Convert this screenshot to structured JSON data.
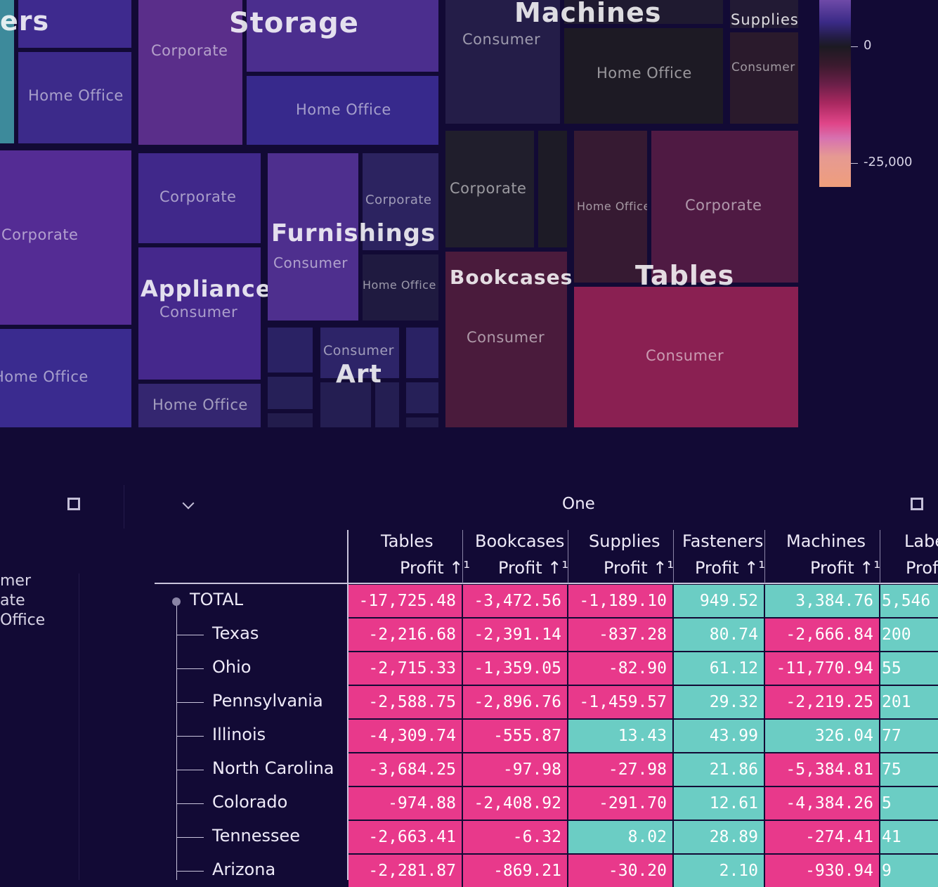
{
  "treemap": {
    "tiles": [
      {
        "name": "cat-binders-edge",
        "color": "#3d8a9b"
      },
      {
        "name": "binders-consumer",
        "color": "#3e2a8e"
      },
      {
        "name": "binders-home-office",
        "color": "#3c2a8a",
        "label": "Home Office"
      },
      {
        "name": "binders-corporate",
        "color": "#542c94",
        "label": "Corporate"
      },
      {
        "name": "binders-home-office-2",
        "color": "#3a2b8f",
        "label": "Home Office"
      },
      {
        "name": "storage-corporate",
        "color": "#5a2e8a",
        "label": "Corporate"
      },
      {
        "name": "storage-consumer",
        "color": "#4b2e8e"
      },
      {
        "name": "storage-home-office",
        "color": "#37298c",
        "label": "Home Office"
      },
      {
        "name": "appliances-corporate",
        "color": "#40288a",
        "label": "Corporate"
      },
      {
        "name": "appliances-consumer",
        "color": "#45288c",
        "label": "Consumer"
      },
      {
        "name": "appliances-home-office",
        "color": "#342670",
        "label": "Home Office"
      },
      {
        "name": "furnishings-consumer",
        "color": "#4e2f8e",
        "label": "Consumer"
      },
      {
        "name": "furnishings-corporate",
        "color": "#2c2360",
        "label": "Corporate"
      },
      {
        "name": "furnishings-home-office",
        "color": "#1f1a40",
        "label": "Home Office"
      },
      {
        "name": "art-consumer",
        "color": "#2d2468",
        "label": "Consumer"
      },
      {
        "name": "machines-consumer",
        "color": "#241d48",
        "label": "Consumer"
      },
      {
        "name": "machines-home-office",
        "color": "#1d1a24",
        "label": "Home Office"
      },
      {
        "name": "supplies-consumer",
        "color": "#2a1a2c",
        "label": "Consumer"
      },
      {
        "name": "machines-corporate",
        "color": "#201e2c",
        "label": "Corporate"
      },
      {
        "name": "bookcases-consumer",
        "color": "#4a1b3c",
        "label": "Consumer"
      },
      {
        "name": "tables-home-office",
        "color": "#361a32",
        "label": "Home Office"
      },
      {
        "name": "tables-corporate",
        "color": "#4f1a43",
        "label": "Corporate"
      },
      {
        "name": "tables-consumer",
        "color": "#8a2052",
        "label": "Consumer"
      }
    ],
    "category_labels": {
      "binders": "ers",
      "storage": "Storage",
      "machines": "Machines",
      "supplies": "Supplies",
      "furnishings": "Furnishings",
      "appliances": "Appliances",
      "art": "Art",
      "bookcases": "Bookcases",
      "tables": "Tables"
    },
    "colorbar": {
      "tick_zero": "0",
      "tick_neg": "-25,000"
    }
  },
  "legend": {
    "items": [
      "mer",
      "ate",
      "Office"
    ]
  },
  "pivot": {
    "title": "One",
    "collapse_icon": "chevron-down-icon",
    "expand_icon": "fullscreen-icon",
    "columns": [
      {
        "category": "Tables",
        "measure": "Profit ↑¹"
      },
      {
        "category": "Bookcases",
        "measure": "Profit ↑¹"
      },
      {
        "category": "Supplies",
        "measure": "Profit ↑¹"
      },
      {
        "category": "Fasteners",
        "measure": "Profit ↑¹"
      },
      {
        "category": "Machines",
        "measure": "Profit ↑¹"
      },
      {
        "category": "Labe",
        "measure": "Prof"
      }
    ],
    "rows": [
      {
        "label": "TOTAL",
        "values": [
          "-17,725.48",
          "-3,472.56",
          "-1,189.10",
          "949.52",
          "3,384.76",
          "5,546"
        ]
      },
      {
        "label": "Texas",
        "values": [
          "-2,216.68",
          "-2,391.14",
          "-837.28",
          "80.74",
          "-2,666.84",
          "200"
        ]
      },
      {
        "label": "Ohio",
        "values": [
          "-2,715.33",
          "-1,359.05",
          "-82.90",
          "61.12",
          "-11,770.94",
          "55"
        ]
      },
      {
        "label": "Pennsylvania",
        "values": [
          "-2,588.75",
          "-2,896.76",
          "-1,459.57",
          "29.32",
          "-2,219.25",
          "201"
        ]
      },
      {
        "label": "Illinois",
        "values": [
          "-4,309.74",
          "-555.87",
          "13.43",
          "43.99",
          "326.04",
          "77"
        ]
      },
      {
        "label": "North Carolina",
        "values": [
          "-3,684.25",
          "-97.98",
          "-27.98",
          "21.86",
          "-5,384.81",
          "75"
        ]
      },
      {
        "label": "Colorado",
        "values": [
          "-974.88",
          "-2,408.92",
          "-291.70",
          "12.61",
          "-4,384.26",
          "5"
        ]
      },
      {
        "label": "Tennessee",
        "values": [
          "-2,663.41",
          "-6.32",
          "8.02",
          "28.89",
          "-274.41",
          "41"
        ]
      },
      {
        "label": "Arizona",
        "values": [
          "-2,281.87",
          "-869.21",
          "-30.20",
          "2.10",
          "-930.94",
          "9"
        ]
      }
    ],
    "colors": {
      "negative": "#e8398b",
      "positive": "#6bcdc4"
    }
  }
}
